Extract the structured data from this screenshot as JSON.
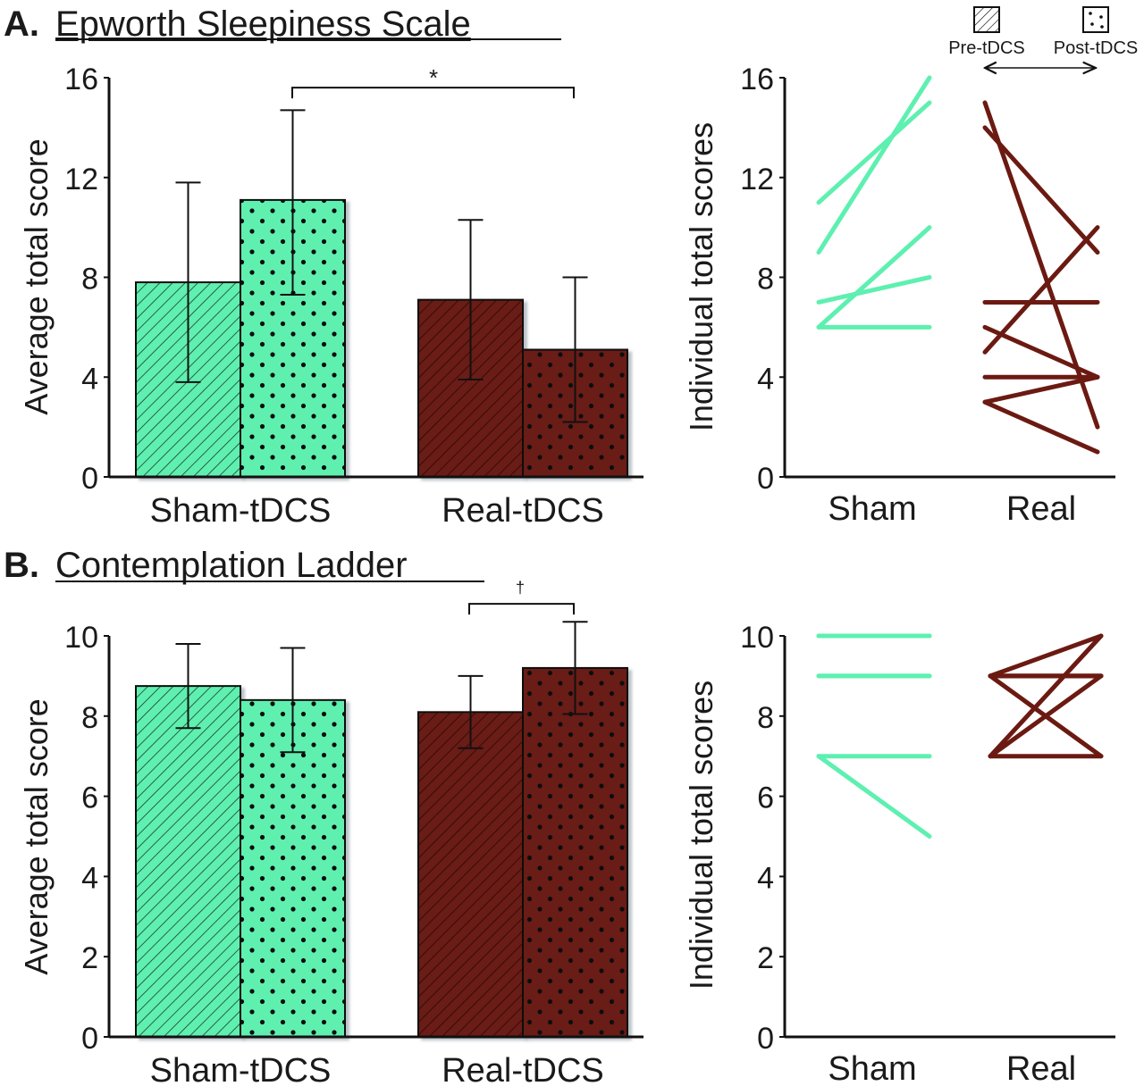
{
  "panels": {
    "A": {
      "letter": "A.",
      "title": "Epworth Sleepiness Scale"
    },
    "B": {
      "letter": "B.",
      "title": "Contemplation Ladder"
    }
  },
  "legend": {
    "pre_label": "Pre-tDCS",
    "post_label": "Post-tDCS"
  },
  "colors": {
    "sham": "#5ef0b0",
    "real": "#6b1a12",
    "axis": "#111111"
  },
  "chart_data": [
    {
      "type": "bar",
      "panel": "A",
      "ylabel": "Average total score",
      "ylim": [
        0,
        16
      ],
      "yticks": [
        "0",
        "4",
        "8",
        "12",
        "16"
      ],
      "categories": [
        "Sham-tDCS",
        "Real-tDCS"
      ],
      "series": [
        {
          "name": "Pre-tDCS",
          "values": [
            7.8,
            7.1
          ],
          "err_low": [
            3.8,
            3.9
          ],
          "err_high": [
            11.8,
            10.3
          ]
        },
        {
          "name": "Post-tDCS",
          "values": [
            11.1,
            5.1
          ],
          "err_low": [
            7.3,
            2.2
          ],
          "err_high": [
            14.7,
            8.0
          ]
        }
      ],
      "significance": {
        "label": "*",
        "level": 15.6
      }
    },
    {
      "type": "line",
      "panel": "A",
      "ylabel": "Individual total scores",
      "ylim": [
        0,
        16
      ],
      "yticks": [
        "0",
        "4",
        "8",
        "12",
        "16"
      ],
      "categories": [
        "Sham",
        "Real"
      ],
      "groups": [
        {
          "group": "Sham",
          "pairs": [
            [
              11,
              15
            ],
            [
              9,
              16
            ],
            [
              7,
              8
            ],
            [
              6,
              10
            ],
            [
              6,
              6
            ]
          ]
        },
        {
          "group": "Real",
          "pairs": [
            [
              15,
              2
            ],
            [
              14,
              9
            ],
            [
              7,
              7
            ],
            [
              6,
              4
            ],
            [
              5,
              10
            ],
            [
              4,
              4
            ],
            [
              3,
              4
            ],
            [
              3,
              1
            ]
          ]
        }
      ]
    },
    {
      "type": "bar",
      "panel": "B",
      "ylabel": "Average total score",
      "ylim": [
        0,
        10
      ],
      "yticks": [
        "0",
        "2",
        "4",
        "6",
        "8",
        "10"
      ],
      "categories": [
        "Sham-tDCS",
        "Real-tDCS"
      ],
      "series": [
        {
          "name": "Pre-tDCS",
          "values": [
            8.75,
            8.1
          ],
          "err_low": [
            7.7,
            7.2
          ],
          "err_high": [
            9.8,
            9.0
          ]
        },
        {
          "name": "Post-tDCS",
          "values": [
            8.4,
            9.2
          ],
          "err_low": [
            7.1,
            8.05
          ],
          "err_high": [
            9.7,
            10.35
          ]
        }
      ],
      "significance": {
        "label": "†",
        "level": 10.8
      }
    },
    {
      "type": "line",
      "panel": "B",
      "ylabel": "Individual total scores",
      "ylim": [
        0,
        10
      ],
      "yticks": [
        "0",
        "2",
        "4",
        "6",
        "8",
        "10"
      ],
      "categories": [
        "Sham",
        "Real"
      ],
      "groups": [
        {
          "group": "Sham",
          "pairs": [
            [
              10,
              10
            ],
            [
              10,
              10
            ],
            [
              9,
              9
            ],
            [
              9,
              9
            ],
            [
              7,
              7
            ],
            [
              7,
              5
            ]
          ]
        },
        {
          "group": "Real",
          "pairs": [
            [
              9,
              9
            ],
            [
              9,
              9
            ],
            [
              9,
              9
            ],
            [
              9,
              10
            ],
            [
              9,
              7
            ],
            [
              7,
              9
            ],
            [
              7,
              7
            ],
            [
              7,
              10
            ]
          ]
        }
      ]
    }
  ]
}
